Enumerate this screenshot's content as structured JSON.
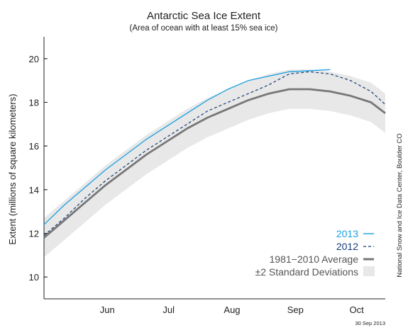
{
  "chart_data": {
    "type": "line",
    "title": "Antarctic Sea Ice Extent",
    "subtitle": "(Area of ocean with at least 15% sea ice)",
    "ylabel": "Extent (millions of square kilometers)",
    "xlabel": "",
    "source_credit": "National Snow and Ice Data Center, Boulder CO",
    "date_stamp": "30 Sep 2013",
    "ylim": [
      9,
      21
    ],
    "xlim": [
      "2013-05-15",
      "2013-10-29"
    ],
    "yticks": [
      10,
      12,
      14,
      16,
      18,
      20
    ],
    "month_ticks": [
      {
        "label": "Jun",
        "date": "2013-06-15"
      },
      {
        "label": "Jul",
        "date": "2013-07-15"
      },
      {
        "label": "Aug",
        "date": "2013-08-15"
      },
      {
        "label": "Sep",
        "date": "2013-09-15"
      },
      {
        "label": "Oct",
        "date": "2013-10-15"
      }
    ],
    "grid": false,
    "legend_position": "bottom-right",
    "colors": {
      "series_2013": "#1a9fe0",
      "series_2012": "#163b78",
      "average": "#777777",
      "std_band": "#e8e8e8"
    },
    "x": [
      "2013-05-15",
      "2013-05-25",
      "2013-06-04",
      "2013-06-14",
      "2013-06-24",
      "2013-07-04",
      "2013-07-14",
      "2013-07-24",
      "2013-08-03",
      "2013-08-13",
      "2013-08-23",
      "2013-09-02",
      "2013-09-12",
      "2013-09-22",
      "2013-10-02",
      "2013-10-12",
      "2013-10-22",
      "2013-10-29"
    ],
    "series": [
      {
        "name": "2013",
        "style": "solid",
        "values": [
          12.4,
          13.3,
          14.1,
          14.9,
          15.6,
          16.3,
          16.9,
          17.5,
          18.1,
          18.6,
          19.0,
          19.2,
          19.4,
          19.45,
          19.5,
          null,
          null,
          null
        ]
      },
      {
        "name": "2012",
        "style": "dashed",
        "values": [
          11.9,
          12.7,
          13.6,
          14.4,
          15.1,
          15.8,
          16.4,
          17.0,
          17.6,
          18.0,
          18.4,
          18.8,
          19.3,
          19.4,
          19.3,
          19.0,
          18.5,
          17.9
        ]
      },
      {
        "name": "1981−2010 Average",
        "style": "thick",
        "values": [
          11.8,
          12.6,
          13.4,
          14.2,
          14.9,
          15.6,
          16.2,
          16.8,
          17.3,
          17.7,
          18.1,
          18.4,
          18.6,
          18.6,
          18.5,
          18.3,
          18.0,
          17.5
        ]
      }
    ],
    "std_band": {
      "name": "±2 Standard Deviations",
      "upper": [
        12.7,
        13.5,
        14.3,
        15.1,
        15.8,
        16.5,
        17.1,
        17.7,
        18.2,
        18.6,
        19.0,
        19.3,
        19.5,
        19.5,
        19.4,
        19.2,
        18.9,
        18.4
      ],
      "lower": [
        10.9,
        11.7,
        12.5,
        13.3,
        14.0,
        14.7,
        15.3,
        15.9,
        16.4,
        16.8,
        17.2,
        17.5,
        17.7,
        17.7,
        17.6,
        17.4,
        17.1,
        16.6
      ]
    }
  }
}
